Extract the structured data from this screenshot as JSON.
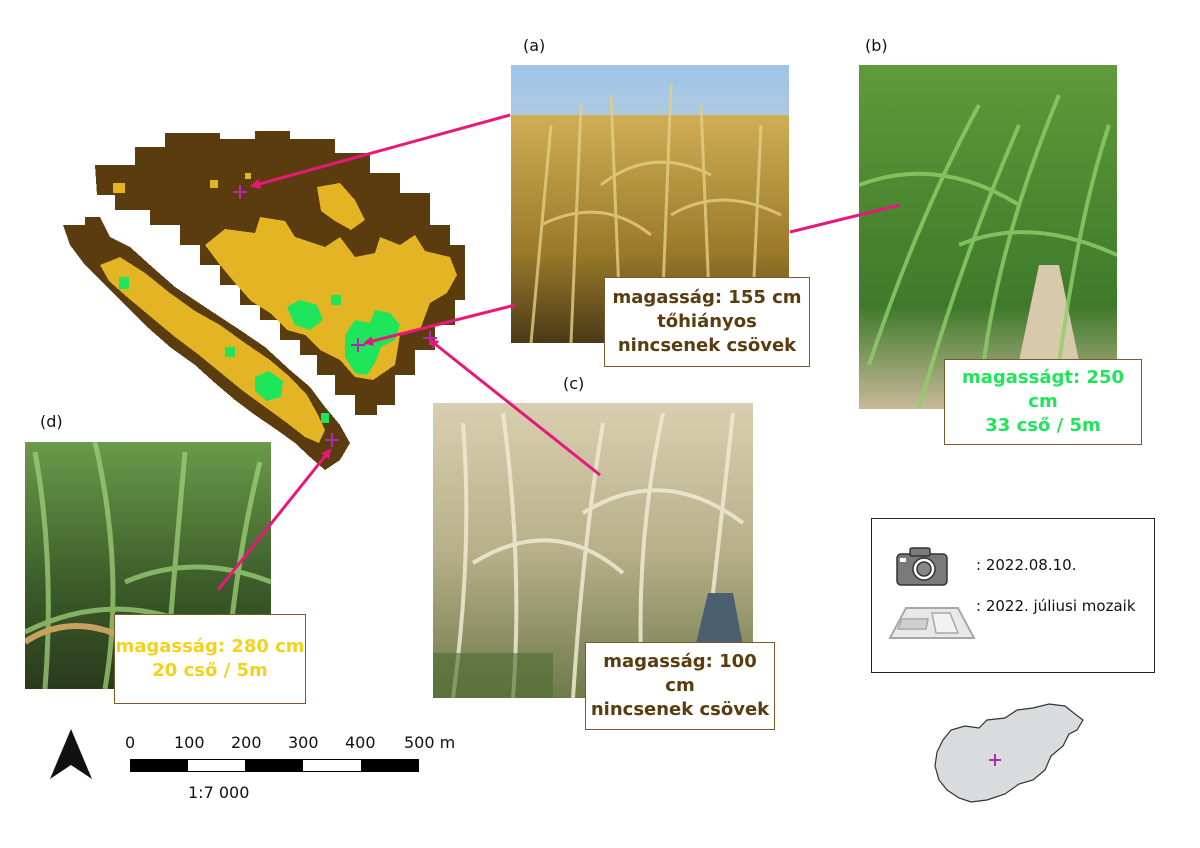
{
  "colors": {
    "dark_brown": "#5a3c0f",
    "gold": "#e3b423",
    "green": "#1ee65a",
    "arrow": "#e8187a",
    "marker": "#b02ab0",
    "text_brown": "#5a3c0f",
    "text_green": "#1ee65a",
    "text_yellow": "#f2d21a"
  },
  "panels": {
    "a": {
      "letter": "(a)",
      "lines": [
        "magasság: 155 cm",
        "tőhiányos",
        "nincsenek csövek"
      ]
    },
    "b": {
      "letter": "(b)",
      "lines": [
        "magasságt: 250 cm",
        "33 cső / 5m"
      ]
    },
    "c": {
      "letter": "(c)",
      "lines": [
        "magasság: 100 cm",
        "nincsenek csövek"
      ]
    },
    "d": {
      "letter": "(d)",
      "lines": [
        "magasság: 280 cm",
        "20 cső / 5m"
      ]
    }
  },
  "legend": {
    "photo_icon": "camera-icon",
    "photo_text": ": 2022.08.10.",
    "mosaic_icon": "map-mosaic-icon",
    "mosaic_text": ": 2022. júliusi mozaik"
  },
  "scale": {
    "ticks": [
      "0",
      "100",
      "200",
      "300",
      "400",
      "500 m"
    ],
    "ratio": "1:7 000"
  },
  "north_arrow_icon": "north-arrow-icon",
  "inset_map_icon": "hungary-outline-icon"
}
